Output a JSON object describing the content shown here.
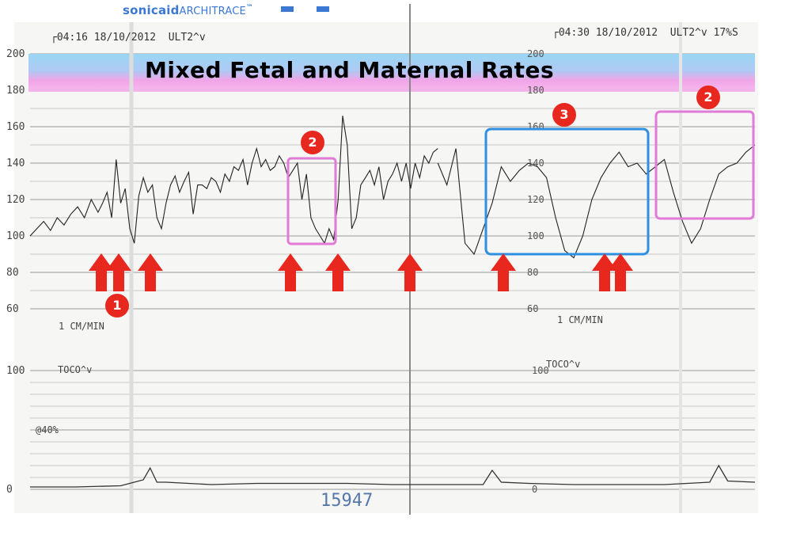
{
  "brand": {
    "name_a": "sonicaid",
    "name_b": "ARCHITRACE",
    "tm": "™"
  },
  "title": "Mixed Fetal and Maternal Rates",
  "header_left": {
    "marker": "┌",
    "time": "04:16",
    "date": "18/10/2012",
    "mode": "ULT2",
    "symbol": "^v"
  },
  "header_right": {
    "marker": "┌",
    "time": "04:30",
    "date": "18/10/2012",
    "mode": "ULT2",
    "symbol": "^v",
    "extra": "17%S"
  },
  "speed_label": "1 CM/MIN",
  "toco_label": "TOCO",
  "toco_symbol": "^v",
  "toco_offset_label": "@40%",
  "serial": "15947",
  "annotations": [
    {
      "id": "badge-1",
      "text": "1"
    },
    {
      "id": "badge-2a",
      "text": "2"
    },
    {
      "id": "badge-2b",
      "text": "2"
    },
    {
      "id": "badge-3",
      "text": "3"
    }
  ],
  "colors": {
    "maternal_band_blue": "#8fd3f4",
    "maternal_band_pink": "#f09be6",
    "arrow": "#e8281e",
    "box_pink": "#e07bd7",
    "box_blue": "#2f8fe0",
    "trace": "#222222",
    "grid": "#9a9a9a"
  },
  "chart_data": [
    {
      "type": "line",
      "name": "heart-rate",
      "y_ticks_left": [
        200,
        180,
        160,
        140,
        120,
        100,
        80,
        60
      ],
      "y_ticks_mid": [
        200,
        180,
        160,
        140,
        120,
        100,
        80,
        60
      ],
      "ylim": [
        60,
        200
      ],
      "x_units": "minutes",
      "segments": [
        {
          "x": [
            0,
            0.3,
            0.6,
            0.9,
            1.2,
            1.5,
            1.8,
            2.1,
            2.4,
            2.7,
            3.0,
            3.2,
            3.4,
            3.6,
            3.8,
            4.0,
            4.2,
            4.4,
            4.6,
            4.8,
            5.0,
            5.2,
            5.4,
            5.6,
            5.8,
            6.0,
            6.2,
            6.4,
            6.6,
            6.8,
            7.0,
            7.2,
            7.4,
            7.6,
            7.8,
            8.0,
            8.2,
            8.4,
            8.6,
            8.8,
            9.0,
            9.2,
            9.4,
            9.6,
            9.8,
            10.0,
            10.2,
            10.4,
            10.6,
            10.8,
            11.0,
            11.2,
            11.4,
            11.6,
            11.8,
            12.0,
            12.2,
            12.4,
            12.6,
            12.8,
            13.0,
            13.2,
            13.4,
            13.6,
            13.8,
            14.0,
            14.2,
            14.4,
            14.6,
            14.8,
            15.0,
            15.2,
            15.4,
            15.6,
            15.8,
            16.0,
            16.2,
            16.4,
            16.6,
            16.8,
            17.0,
            17.2,
            17.4,
            17.6,
            17.8,
            18.0
          ],
          "y": [
            100,
            104,
            108,
            103,
            110,
            106,
            112,
            116,
            110,
            120,
            113,
            118,
            124,
            110,
            142,
            118,
            126,
            104,
            96,
            122,
            132,
            124,
            128,
            110,
            104,
            118,
            128,
            133,
            124,
            130,
            135,
            112,
            128,
            128,
            126,
            132,
            130,
            124,
            134,
            130,
            138,
            136,
            142,
            128,
            140,
            148,
            138,
            142,
            136,
            138,
            144,
            140,
            132,
            136,
            140,
            120,
            134,
            110,
            104,
            100,
            96,
            104,
            98,
            120,
            166,
            150,
            104,
            110,
            128,
            132,
            136,
            128,
            138,
            120,
            130,
            134,
            140,
            130,
            140,
            126,
            140,
            132,
            144,
            140,
            146,
            148
          ]
        },
        {
          "x": [
            18.0,
            18.4,
            18.8,
            19.2,
            19.6,
            20.0,
            20.4,
            20.8,
            21.2,
            21.6,
            22.0,
            22.4,
            22.8,
            23.2,
            23.6,
            24.0,
            24.4,
            24.8,
            25.2,
            25.6,
            26.0,
            26.4,
            26.8,
            27.2,
            27.6,
            28.0,
            28.4,
            28.8,
            29.2,
            29.6,
            30.0,
            30.4,
            30.8,
            31.2,
            31.6,
            32.0
          ],
          "y": [
            140,
            128,
            148,
            96,
            90,
            104,
            118,
            138,
            130,
            136,
            140,
            138,
            132,
            110,
            92,
            88,
            100,
            120,
            132,
            140,
            146,
            138,
            140,
            134,
            138,
            142,
            124,
            108,
            96,
            104,
            120,
            134,
            138,
            140,
            146,
            150
          ]
        }
      ],
      "maternal_band": {
        "ylim": [
          178,
          200
        ]
      }
    },
    {
      "type": "line",
      "name": "toco",
      "y_ticks": [
        100,
        0
      ],
      "ylim": [
        0,
        100
      ],
      "x": [
        0,
        2,
        4,
        5,
        5.3,
        5.6,
        6,
        8,
        10,
        12,
        14,
        16,
        18,
        20,
        20.4,
        20.8,
        22,
        24,
        26,
        28,
        30,
        30.4,
        30.8,
        32
      ],
      "y": [
        2,
        2,
        3,
        8,
        18,
        6,
        6,
        4,
        5,
        5,
        5,
        4,
        4,
        4,
        16,
        6,
        5,
        4,
        4,
        4,
        6,
        20,
        7,
        6
      ]
    }
  ]
}
